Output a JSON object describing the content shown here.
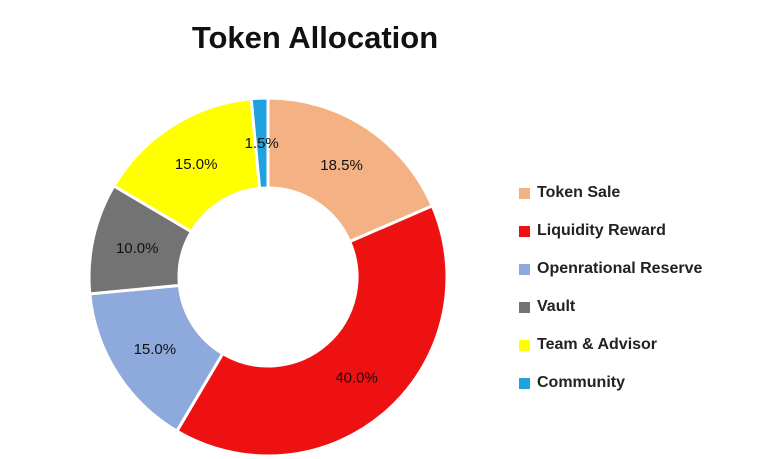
{
  "chart_data": {
    "type": "pie",
    "donut": true,
    "title": "Token Allocation",
    "start_angle": "12 o'clock",
    "direction": "clockwise",
    "slices": [
      {
        "label": "Token Sale",
        "value": 18.5,
        "display": "18.5%",
        "color": "#F4B183"
      },
      {
        "label": "Liquidity Reward",
        "value": 40.0,
        "display": "40.0%",
        "color": "#EE1111"
      },
      {
        "label": "Openrational Reserve",
        "value": 15.0,
        "display": "15.0%",
        "color": "#8EA9DB"
      },
      {
        "label": "Vault",
        "value": 10.0,
        "display": "10.0%",
        "color": "#737373"
      },
      {
        "label": "Team & Advisor",
        "value": 15.0,
        "display": "15.0%",
        "color": "#FFFF00"
      },
      {
        "label": "Community",
        "value": 1.5,
        "display": "1.5%",
        "color": "#1FA2DD"
      }
    ],
    "legend_position": "right"
  }
}
